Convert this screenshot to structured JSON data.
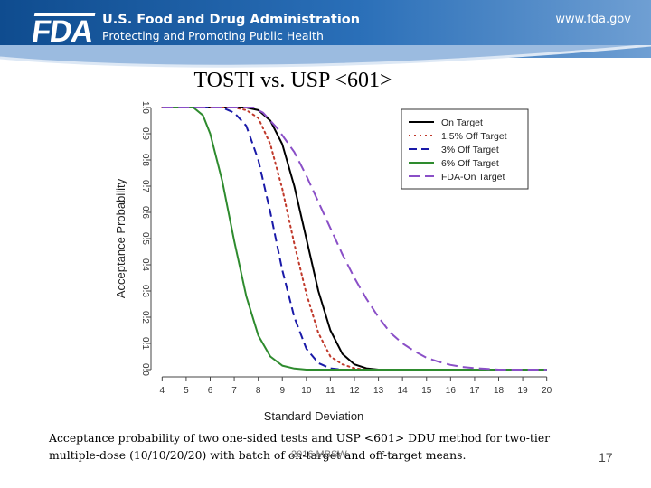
{
  "header": {
    "logo_text": "FDA",
    "org_name": "U.S. Food and Drug Administration",
    "tagline": "Protecting and Promoting Public Health",
    "url": "www.fda.gov"
  },
  "slide": {
    "title": "TOSTI vs. USP <601>",
    "caption": "Acceptance probability of two one-sided tests and USP <601> DDU method for two-tier multiple-dose (10/10/20/20) with batch of on-target and off-target means.",
    "footer_center": "2016 MBSW",
    "page_number": "17"
  },
  "colors": {
    "on_target": "#000000",
    "off_1_5": "#c0392b",
    "off_3": "#1a1aa8",
    "off_6": "#2e8b2e",
    "fda_on_target": "#8a4fc7"
  },
  "chart_data": {
    "type": "line",
    "title": "",
    "xlabel": "Standard Deviation",
    "ylabel": "Acceptance Probability",
    "xlim": [
      3.8,
      20.2
    ],
    "ylim": [
      0,
      1
    ],
    "xticks": [
      4,
      5,
      6,
      7,
      8,
      9,
      10,
      11,
      12,
      13,
      14,
      15,
      16,
      17,
      18,
      19,
      20
    ],
    "yticks": [
      "0.0",
      "0.1",
      "0.2",
      "0.3",
      "0.4",
      "0.5",
      "0.6",
      "0.7",
      "0.8",
      "0.9",
      "1.0"
    ],
    "legend_position": "top-right",
    "series": [
      {
        "name": "On Target",
        "style": "solid",
        "color": "#000000",
        "x": [
          4,
          7.5,
          8,
          8.5,
          9,
          9.5,
          10,
          10.5,
          11,
          11.5,
          12,
          12.5,
          13,
          14,
          20
        ],
        "y": [
          1.0,
          1.0,
          0.99,
          0.95,
          0.86,
          0.7,
          0.5,
          0.3,
          0.15,
          0.06,
          0.02,
          0.005,
          0.0,
          0.0,
          0.0
        ]
      },
      {
        "name": "1.5% Off Target",
        "style": "dotted",
        "color": "#c0392b",
        "x": [
          4,
          7,
          7.5,
          8,
          8.5,
          9,
          9.5,
          10,
          10.5,
          11,
          11.5,
          12,
          12.5,
          13,
          20
        ],
        "y": [
          1.0,
          1.0,
          0.99,
          0.96,
          0.86,
          0.69,
          0.48,
          0.29,
          0.14,
          0.05,
          0.02,
          0.005,
          0.0,
          0.0,
          0.0
        ]
      },
      {
        "name": "3% Off Target",
        "style": "dashed",
        "color": "#1a1aa8",
        "x": [
          4,
          6.5,
          7,
          7.5,
          8,
          8.5,
          9,
          9.5,
          10,
          10.5,
          11,
          11.5,
          12,
          20
        ],
        "y": [
          1.0,
          1.0,
          0.98,
          0.93,
          0.8,
          0.6,
          0.38,
          0.2,
          0.08,
          0.025,
          0.005,
          0.0,
          0.0,
          0.0
        ]
      },
      {
        "name": "6% Off Target",
        "style": "solid",
        "color": "#2e8b2e",
        "x": [
          4,
          5.3,
          5.7,
          6,
          6.5,
          7,
          7.5,
          8,
          8.5,
          9,
          9.5,
          10,
          10.5,
          20
        ],
        "y": [
          1.0,
          1.0,
          0.97,
          0.9,
          0.72,
          0.49,
          0.28,
          0.13,
          0.05,
          0.015,
          0.004,
          0.0,
          0.0,
          0.0
        ]
      },
      {
        "name": "FDA-On Target",
        "style": "longdash",
        "color": "#8a4fc7",
        "x": [
          4,
          7.8,
          8.2,
          8.8,
          9.5,
          10,
          10.5,
          11,
          11.5,
          12,
          12.5,
          13,
          13.5,
          14,
          14.5,
          15,
          15.5,
          16,
          16.5,
          17,
          17.5,
          18,
          20
        ],
        "y": [
          1.0,
          1.0,
          0.98,
          0.92,
          0.83,
          0.74,
          0.64,
          0.54,
          0.44,
          0.35,
          0.27,
          0.2,
          0.14,
          0.1,
          0.07,
          0.045,
          0.03,
          0.018,
          0.01,
          0.006,
          0.003,
          0.0,
          0.0
        ]
      }
    ]
  }
}
